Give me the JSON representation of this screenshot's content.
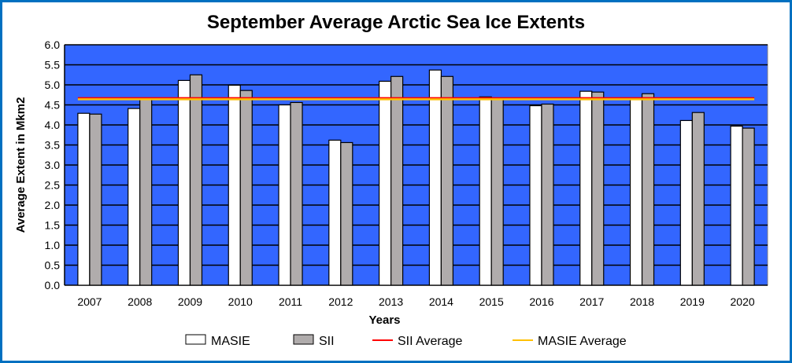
{
  "chart_data": {
    "type": "bar",
    "title": "September Average Arctic Sea Ice Extents",
    "xlabel": "Years",
    "ylabel": "Average Extent in Mkm2",
    "ylim": [
      0,
      6
    ],
    "ytick_step": 0.5,
    "grid": true,
    "legend_position": "bottom",
    "categories": [
      "2007",
      "2008",
      "2009",
      "2010",
      "2011",
      "2012",
      "2013",
      "2014",
      "2015",
      "2016",
      "2017",
      "2018",
      "2019",
      "2020"
    ],
    "series": [
      {
        "name": "MASIE",
        "type": "bar",
        "color": "#ffffff",
        "values": [
          4.29,
          4.41,
          5.11,
          4.99,
          4.5,
          3.62,
          5.09,
          5.37,
          4.7,
          4.48,
          4.84,
          4.67,
          4.11,
          3.97
        ]
      },
      {
        "name": "SII",
        "type": "bar",
        "color": "#b0acac",
        "values": [
          4.27,
          4.65,
          5.25,
          4.86,
          4.56,
          3.56,
          5.21,
          5.21,
          4.63,
          4.52,
          4.82,
          4.78,
          4.31,
          3.92
        ]
      },
      {
        "name": "SII Average",
        "type": "line",
        "color": "#ff0000",
        "value": 4.67
      },
      {
        "name": "MASIE Average",
        "type": "line",
        "color": "#ffc000",
        "value": 4.64
      }
    ],
    "plot_background": "#3366ff"
  },
  "frame_color": "#0070c0"
}
